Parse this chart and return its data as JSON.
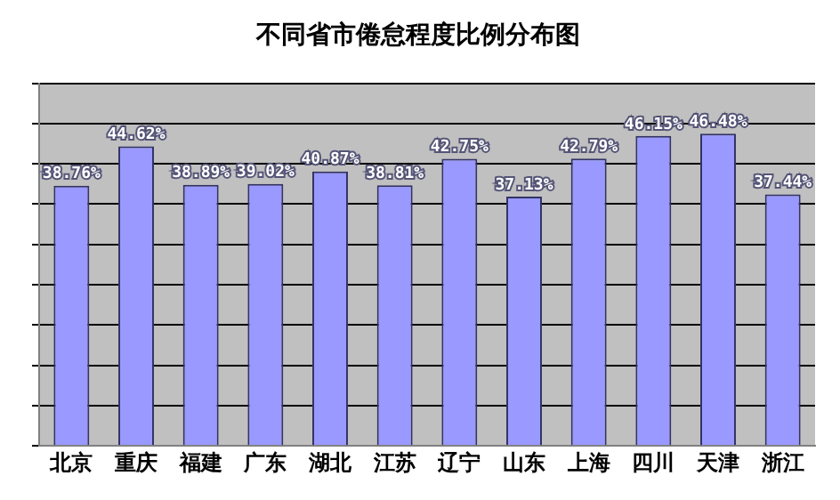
{
  "chart_data": {
    "type": "bar",
    "title": "不同省市倦怠程度比例分布图",
    "categories": [
      "北京",
      "重庆",
      "福建",
      "广东",
      "湖北",
      "江苏",
      "辽宁",
      "山东",
      "上海",
      "四川",
      "天津",
      "浙江"
    ],
    "values": [
      38.76,
      44.62,
      38.89,
      39.02,
      40.87,
      38.81,
      42.75,
      37.13,
      42.79,
      46.15,
      46.48,
      37.44
    ],
    "value_labels": [
      "38.76%",
      "44.62%",
      "38.89%",
      "39.02%",
      "40.87%",
      "38.81%",
      "42.75%",
      "37.13%",
      "42.79%",
      "46.15%",
      "46.48%",
      "37.44%"
    ],
    "color": "#9999ff",
    "ylim": [
      0,
      54
    ],
    "yticks": [
      {
        "value": 0,
        "label": null
      },
      {
        "value": 6,
        "label": null
      },
      {
        "value": 12,
        "label": null
      },
      {
        "value": 18,
        "label": null
      },
      {
        "value": 24,
        "label": null
      },
      {
        "value": 30,
        "label": null
      },
      {
        "value": 36,
        "label": null
      },
      {
        "value": 42,
        "label": null
      },
      {
        "value": 48,
        "label": null
      },
      {
        "value": 54,
        "label": null
      }
    ],
    "grid": "y",
    "legend": false,
    "tick_labels": "x"
  }
}
